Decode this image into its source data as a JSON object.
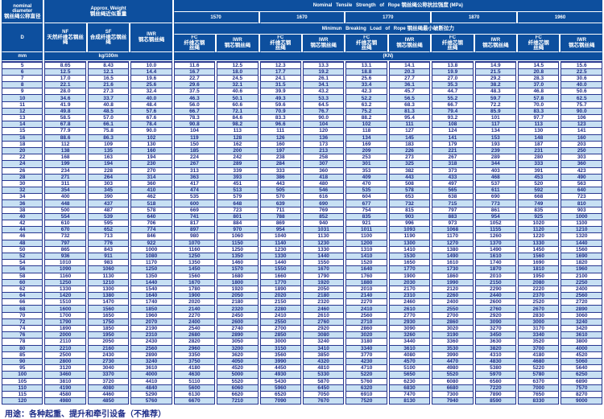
{
  "colors": {
    "header_bg": "#0d4f9e",
    "header_text": "#ffffff",
    "stripe_bg": "#c7e0f3",
    "value_text": "#1c2b87",
    "grid_line": "#27368f"
  },
  "header": {
    "diameter": {
      "en_line1": "nominal",
      "en_line2": "diameter",
      "zh": "钢丝绳公称直径",
      "symbol": "D",
      "unit": "mm"
    },
    "weight": {
      "en": "Approx. Weight",
      "zh": "钢丝绳近似重量",
      "unit": "kg/100m",
      "nf_code": "NF",
      "nf_zh": "天然纤维芯钢丝绳",
      "sf_code": "SF",
      "sf_zh": "合成纤维芯钢丝绳",
      "iwr_code": "IWR",
      "iwr_zh": "钢芯钢丝绳"
    },
    "strength": {
      "en": "Nominal Tensile Strength of Rope",
      "zh": "钢丝绳公称抗拉强度",
      "unit": "(MPa)"
    },
    "breaking": {
      "en": "Minimun Breaking Load of Rope",
      "zh": "钢丝绳最小破断拉力",
      "unit": "(KN)"
    },
    "strengths": [
      "1570",
      "1670",
      "1770",
      "1870",
      "1960"
    ],
    "fc": {
      "code": "FC",
      "zh": "纤维芯钢丝绳"
    },
    "iwr_core": {
      "code": "IWR",
      "zh": "钢芯钢丝绳"
    }
  },
  "table": {
    "columns": [
      "D",
      "NF",
      "SF",
      "IWR",
      "FC 1570",
      "IWR 1570",
      "FC 1670",
      "IWR 1670",
      "FC 1770",
      "IWR 1770",
      "FC 1870",
      "IWR 1870",
      "FC 1960",
      "IWR 1960"
    ],
    "rows": [
      [
        "5",
        "8.65",
        "8.43",
        "10.0",
        "11.6",
        "12.5",
        "12.3",
        "13.3",
        "13.1",
        "14.1",
        "13.8",
        "14.9",
        "14.5",
        "15.6"
      ],
      [
        "6",
        "12.5",
        "12.1",
        "14.4",
        "16.7",
        "18.0",
        "17.7",
        "19.2",
        "18.8",
        "20.3",
        "19.9",
        "21.5",
        "20.8",
        "22.5"
      ],
      [
        "7",
        "17.0",
        "16.5",
        "19.6",
        "22.7",
        "24.5",
        "24.1",
        "26.1",
        "25.6",
        "27.7",
        "27.0",
        "29.2",
        "28.3",
        "30.6"
      ],
      [
        "8",
        "22.1",
        "21.6",
        "25.6",
        "29.6",
        "32.1",
        "31.5",
        "34.1",
        "33.4",
        "36.1",
        "35.3",
        "38.2",
        "37.0",
        "40.0"
      ],
      [
        "9",
        "28.0",
        "27.3",
        "32.4",
        "37.5",
        "40.6",
        "39.9",
        "43.2",
        "42.3",
        "45.7",
        "44.7",
        "48.3",
        "46.8",
        "50.6"
      ],
      [
        "10",
        "34.6",
        "33.7",
        "40.0",
        "46.3",
        "50.1",
        "49.3",
        "53.3",
        "52.2",
        "56.5",
        "55.2",
        "59.7",
        "57.8",
        "62.5"
      ],
      [
        "11",
        "41.9",
        "40.8",
        "48.4",
        "56.0",
        "60.6",
        "59.6",
        "64.5",
        "63.2",
        "68.3",
        "66.7",
        "72.2",
        "70.0",
        "75.7"
      ],
      [
        "12",
        "49.8",
        "48.5",
        "57.6",
        "66.7",
        "72.1",
        "70.9",
        "76.7",
        "75.2",
        "81.3",
        "79.4",
        "85.9",
        "83.3",
        "90.0"
      ],
      [
        "13",
        "58.5",
        "57.0",
        "67.6",
        "78.3",
        "84.6",
        "83.3",
        "90.0",
        "88.2",
        "95.4",
        "93.2",
        "101",
        "97.7",
        "106"
      ],
      [
        "14",
        "67.8",
        "66.1",
        "78.4",
        "90.8",
        "98.2",
        "96.6",
        "104",
        "102",
        "111",
        "108",
        "117",
        "113",
        "123"
      ],
      [
        "15",
        "77.9",
        "75.8",
        "90.0",
        "104",
        "113",
        "111",
        "120",
        "118",
        "127",
        "124",
        "134",
        "130",
        "141"
      ],
      [
        "16",
        "88.6",
        "86.3",
        "102",
        "119",
        "128",
        "126",
        "136",
        "134",
        "145",
        "141",
        "153",
        "148",
        "160"
      ],
      [
        "18",
        "112",
        "109",
        "130",
        "150",
        "162",
        "160",
        "173",
        "169",
        "183",
        "179",
        "193",
        "187",
        "203"
      ],
      [
        "20",
        "138",
        "135",
        "160",
        "185",
        "200",
        "197",
        "213",
        "209",
        "226",
        "221",
        "239",
        "231",
        "250"
      ],
      [
        "22",
        "168",
        "163",
        "194",
        "224",
        "242",
        "238",
        "258",
        "253",
        "273",
        "267",
        "289",
        "280",
        "303"
      ],
      [
        "24",
        "199",
        "194",
        "230",
        "267",
        "289",
        "284",
        "307",
        "301",
        "325",
        "318",
        "344",
        "333",
        "360"
      ],
      [
        "26",
        "234",
        "228",
        "270",
        "313",
        "339",
        "333",
        "360",
        "353",
        "382",
        "373",
        "403",
        "391",
        "423"
      ],
      [
        "28",
        "271",
        "264",
        "314",
        "363",
        "393",
        "386",
        "418",
        "409",
        "443",
        "433",
        "468",
        "453",
        "490"
      ],
      [
        "30",
        "311",
        "303",
        "360",
        "417",
        "451",
        "443",
        "480",
        "470",
        "508",
        "497",
        "537",
        "520",
        "563"
      ],
      [
        "32",
        "354",
        "345",
        "410",
        "474",
        "513",
        "505",
        "546",
        "535",
        "578",
        "565",
        "611",
        "592",
        "640"
      ],
      [
        "34",
        "400",
        "390",
        "462",
        "535",
        "579",
        "570",
        "616",
        "604",
        "653",
        "638",
        "690",
        "668",
        "723"
      ],
      [
        "36",
        "448",
        "437",
        "518",
        "600",
        "648",
        "639",
        "690",
        "677",
        "732",
        "715",
        "773",
        "749",
        "810"
      ],
      [
        "38",
        "500",
        "487",
        "578",
        "669",
        "723",
        "711",
        "769",
        "754",
        "815",
        "797",
        "861",
        "835",
        "903"
      ],
      [
        "40",
        "554",
        "539",
        "640",
        "741",
        "801",
        "788",
        "852",
        "835",
        "903",
        "883",
        "954",
        "925",
        "1000"
      ],
      [
        "42",
        "610",
        "595",
        "706",
        "817",
        "884",
        "869",
        "940",
        "921",
        "996",
        "973",
        "1052",
        "1020",
        "1100"
      ],
      [
        "44",
        "670",
        "652",
        "774",
        "897",
        "970",
        "954",
        "1031",
        "1011",
        "1093",
        "1068",
        "1155",
        "1120",
        "1210"
      ],
      [
        "46",
        "732",
        "713",
        "846",
        "980",
        "1060",
        "1040",
        "1130",
        "1100",
        "1190",
        "1170",
        "1260",
        "1220",
        "1320"
      ],
      [
        "48",
        "797",
        "776",
        "922",
        "1070",
        "1150",
        "1140",
        "1230",
        "1200",
        "1300",
        "1270",
        "1370",
        "1330",
        "1440"
      ],
      [
        "50",
        "865",
        "843",
        "1000",
        "1160",
        "1250",
        "1230",
        "1330",
        "1310",
        "1410",
        "1380",
        "1490",
        "1450",
        "1560"
      ],
      [
        "52",
        "936",
        "911",
        "1080",
        "1250",
        "1350",
        "1330",
        "1440",
        "1410",
        "1530",
        "1490",
        "1610",
        "1560",
        "1690"
      ],
      [
        "54",
        "1010",
        "983",
        "1170",
        "1350",
        "1460",
        "1440",
        "1550",
        "1520",
        "1650",
        "1610",
        "1740",
        "1690",
        "1820"
      ],
      [
        "56",
        "1090",
        "1060",
        "1250",
        "1450",
        "1570",
        "1550",
        "1670",
        "1640",
        "1770",
        "1730",
        "1870",
        "1810",
        "1960"
      ],
      [
        "58",
        "1160",
        "1130",
        "1350",
        "1560",
        "1680",
        "1660",
        "1790",
        "1760",
        "1900",
        "1860",
        "2010",
        "1950",
        "2100"
      ],
      [
        "60",
        "1250",
        "1210",
        "1440",
        "1670",
        "1800",
        "1770",
        "1920",
        "1880",
        "2030",
        "1990",
        "2150",
        "2080",
        "2250"
      ],
      [
        "62",
        "1330",
        "1300",
        "1540",
        "1780",
        "1920",
        "1890",
        "2050",
        "2010",
        "2170",
        "2120",
        "2290",
        "2220",
        "2400"
      ],
      [
        "64",
        "1420",
        "1380",
        "1640",
        "1900",
        "2050",
        "2020",
        "2180",
        "2140",
        "2310",
        "2260",
        "2440",
        "2370",
        "2560"
      ],
      [
        "66",
        "1510",
        "1470",
        "1740",
        "2020",
        "2180",
        "2150",
        "2320",
        "2270",
        "2460",
        "2400",
        "2600",
        "2520",
        "2720"
      ],
      [
        "68",
        "1600",
        "1560",
        "1850",
        "2140",
        "2320",
        "2280",
        "2460",
        "2410",
        "2610",
        "2550",
        "2760",
        "2670",
        "2890"
      ],
      [
        "70",
        "1700",
        "1650",
        "1960",
        "2270",
        "2450",
        "2410",
        "2610",
        "2560",
        "2770",
        "2700",
        "2920",
        "2830",
        "3060"
      ],
      [
        "72",
        "1790",
        "1750",
        "2070",
        "2400",
        "2600",
        "2550",
        "2760",
        "2710",
        "2930",
        "2860",
        "3090",
        "3000",
        "3240"
      ],
      [
        "74",
        "1890",
        "1850",
        "2190",
        "2540",
        "2740",
        "2700",
        "2920",
        "2860",
        "3090",
        "3020",
        "3270",
        "3170",
        "3420"
      ],
      [
        "76",
        "2000",
        "1950",
        "2310",
        "2680",
        "2890",
        "2850",
        "3080",
        "3020",
        "3260",
        "3190",
        "3450",
        "3340",
        "3610"
      ],
      [
        "78",
        "2110",
        "2050",
        "2430",
        "2820",
        "3050",
        "3000",
        "3240",
        "3180",
        "3440",
        "3360",
        "3630",
        "3520",
        "3800"
      ],
      [
        "80",
        "2210",
        "2160",
        "2560",
        "2960",
        "3200",
        "3150",
        "3410",
        "3340",
        "3610",
        "3530",
        "3820",
        "3700",
        "4000"
      ],
      [
        "85",
        "2500",
        "2430",
        "2890",
        "3350",
        "3620",
        "3560",
        "3850",
        "3770",
        "4080",
        "3990",
        "4310",
        "4180",
        "4520"
      ],
      [
        "90",
        "2800",
        "2730",
        "3240",
        "3750",
        "4050",
        "3990",
        "4320",
        "4230",
        "4570",
        "4470",
        "4830",
        "4680",
        "5060"
      ],
      [
        "95",
        "3120",
        "3040",
        "3610",
        "4180",
        "4520",
        "4450",
        "4810",
        "4710",
        "5100",
        "4980",
        "5380",
        "5220",
        "5640"
      ],
      [
        "100",
        "3460",
        "3370",
        "4000",
        "4630",
        "5000",
        "4930",
        "5330",
        "5220",
        "5650",
        "5520",
        "5970",
        "5780",
        "6250"
      ],
      [
        "105",
        "3810",
        "3720",
        "4410",
        "5110",
        "5520",
        "5430",
        "5870",
        "5760",
        "6230",
        "6080",
        "6580",
        "6370",
        "6890"
      ],
      [
        "110",
        "4190",
        "4080",
        "4840",
        "5600",
        "6060",
        "5960",
        "6450",
        "6320",
        "6830",
        "6680",
        "7220",
        "7000",
        "7570"
      ],
      [
        "115",
        "4580",
        "4460",
        "5290",
        "6130",
        "6620",
        "6520",
        "7050",
        "6910",
        "7470",
        "7300",
        "7890",
        "7650",
        "8270"
      ],
      [
        "120",
        "4980",
        "4850",
        "5760",
        "6670",
        "7210",
        "7090",
        "7670",
        "7520",
        "8130",
        "7940",
        "8590",
        "8330",
        "9000"
      ]
    ]
  },
  "footer": {
    "usage": "用途：各种起重、提升和牵引设备（不推荐）"
  }
}
